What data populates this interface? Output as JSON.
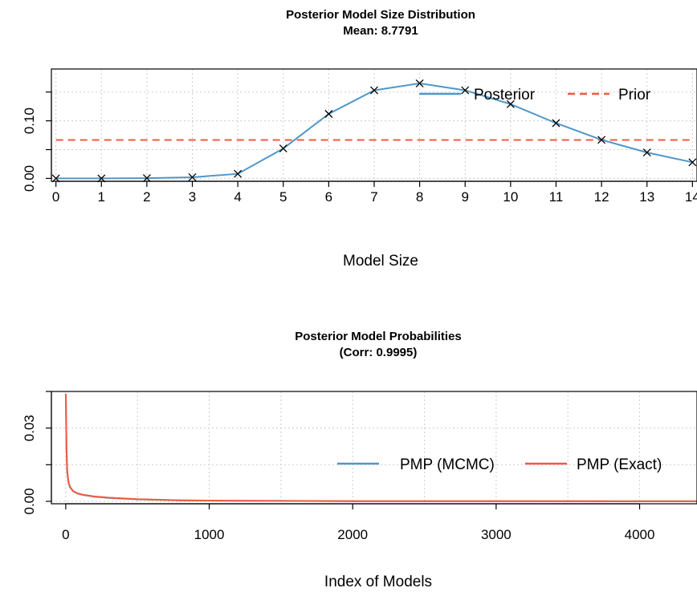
{
  "chart_data": [
    {
      "type": "line",
      "title": "Posterior Model Size Distribution",
      "subtitle": "Mean: 8.7791",
      "xlabel": "Model Size",
      "ylabel": "",
      "x": [
        0,
        1,
        2,
        3,
        4,
        5,
        6,
        7,
        8,
        9,
        10,
        11,
        12,
        13,
        14
      ],
      "xlim": [
        -0.1,
        14.1
      ],
      "ylim": [
        -0.005,
        0.19
      ],
      "x_ticks": [
        "0",
        "1",
        "2",
        "3",
        "4",
        "5",
        "6",
        "7",
        "8",
        "9",
        "10",
        "11",
        "12",
        "13",
        "14"
      ],
      "y_ticks": [
        "0.00",
        "0.10"
      ],
      "grid": true,
      "legend": "top-right",
      "series": [
        {
          "name": "Posterior",
          "color": "#4f97c9",
          "marker": "x",
          "values": [
            0.0,
            0.0,
            0.0005,
            0.002,
            0.008,
            0.052,
            0.112,
            0.153,
            0.165,
            0.153,
            0.129,
            0.096,
            0.067,
            0.045,
            0.028
          ]
        },
        {
          "name": "Prior",
          "color": "#f15a40",
          "style": "dashed",
          "values": [
            0.0667,
            0.0667,
            0.0667,
            0.0667,
            0.0667,
            0.0667,
            0.0667,
            0.0667,
            0.0667,
            0.0667,
            0.0667,
            0.0667,
            0.0667,
            0.0667,
            0.0667
          ]
        }
      ]
    },
    {
      "type": "line",
      "title": "Posterior Model Probabilities",
      "subtitle": "(Corr: 0.9995)",
      "xlabel": "Index of Models",
      "ylabel": "",
      "xlim": [
        -100,
        4400
      ],
      "ylim": [
        -0.001,
        0.045
      ],
      "x_ticks": [
        "0",
        "1000",
        "2000",
        "3000",
        "4000"
      ],
      "y_ticks": [
        "0.00",
        "0.03"
      ],
      "grid": true,
      "legend": "top-right",
      "x": [
        1,
        5,
        10,
        20,
        30,
        50,
        80,
        120,
        200,
        300,
        500,
        800,
        1200,
        2000,
        3000,
        4000,
        4400
      ],
      "series": [
        {
          "name": "PMP (MCMC)",
          "color": "#4f97c9",
          "values": [
            0.043,
            0.021,
            0.012,
            0.0075,
            0.0058,
            0.0042,
            0.0032,
            0.0026,
            0.0019,
            0.0014,
            0.0008,
            0.0004,
            0.0002,
            0.0001,
            5e-05,
            3e-05,
            2e-05
          ]
        },
        {
          "name": "PMP (Exact)",
          "color": "#f15a40",
          "values": [
            0.044,
            0.022,
            0.0125,
            0.0077,
            0.0059,
            0.0043,
            0.0033,
            0.0027,
            0.002,
            0.0015,
            0.0009,
            0.0004,
            0.0002,
            0.0001,
            5e-05,
            3e-05,
            2e-05
          ]
        }
      ]
    }
  ]
}
